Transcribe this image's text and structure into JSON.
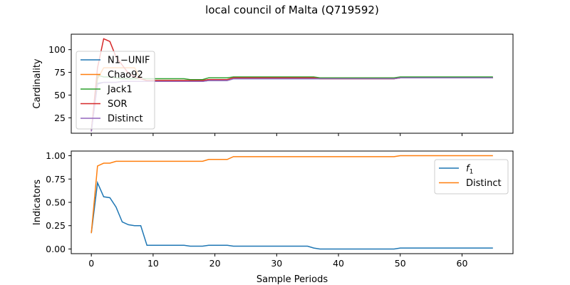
{
  "title": "local council of Malta (Q719592)",
  "chart_data": [
    {
      "type": "line",
      "ylabel": "Cardinality",
      "xlabel": "",
      "xlim": [
        -3.25,
        68.25
      ],
      "ylim": [
        8,
        117
      ],
      "xticks": [
        0,
        10,
        20,
        30,
        40,
        50,
        60
      ],
      "yticks": [
        25,
        50,
        75,
        100
      ],
      "legend_position": "upper-left",
      "series": [
        {
          "name": "N1−UNIF",
          "color": "#1f77b4",
          "x": [
            0,
            1,
            2,
            3,
            4,
            5,
            9,
            15,
            16,
            18,
            19,
            22,
            23,
            36,
            37,
            49,
            50,
            65
          ],
          "y": [
            10,
            63,
            64,
            64,
            64,
            65,
            65,
            65,
            65,
            65,
            66,
            66,
            68,
            68,
            68,
            68,
            69,
            69
          ]
        },
        {
          "name": "Chao92",
          "color": "#ff7f0e",
          "x": [
            0,
            1,
            2,
            3,
            4,
            5,
            6,
            7,
            8,
            9,
            15,
            16,
            18,
            19,
            22,
            23,
            36,
            37,
            49,
            50,
            65
          ],
          "y": [
            12,
            68,
            80,
            80,
            80,
            80,
            80,
            80,
            68,
            66,
            66,
            66,
            66,
            67,
            67,
            69,
            69,
            68,
            68,
            69,
            69
          ]
        },
        {
          "name": "Jack1",
          "color": "#2ca02c",
          "x": [
            0,
            1,
            2,
            3,
            4,
            5,
            9,
            15,
            16,
            18,
            19,
            22,
            23,
            36,
            37,
            49,
            50,
            65
          ],
          "y": [
            11,
            72,
            70,
            70,
            69,
            68,
            68,
            68,
            67,
            67,
            69,
            69,
            70,
            70,
            69,
            69,
            70,
            70
          ]
        },
        {
          "name": "SOR",
          "color": "#d62728",
          "x": [
            0,
            1,
            2,
            3,
            4,
            5,
            6,
            7,
            8,
            9,
            15,
            16,
            18,
            19,
            22,
            23,
            36,
            37,
            49,
            50,
            65
          ],
          "y": [
            10,
            80,
            112,
            109,
            92,
            83,
            74,
            70,
            68,
            66,
            66,
            66,
            66,
            67,
            67,
            69,
            69,
            68,
            68,
            69,
            69
          ]
        },
        {
          "name": "Distinct",
          "color": "#9467bd",
          "x": [
            0,
            1,
            2,
            3,
            4,
            5,
            9,
            15,
            16,
            18,
            19,
            22,
            23,
            36,
            37,
            49,
            50,
            65
          ],
          "y": [
            10,
            62,
            64,
            64,
            64,
            65,
            65,
            65,
            65,
            65,
            66,
            66,
            68,
            68,
            68,
            68,
            69,
            69
          ]
        }
      ]
    },
    {
      "type": "line",
      "ylabel": "Indicators",
      "xlabel": "Sample Periods",
      "xlim": [
        -3.25,
        68.25
      ],
      "ylim": [
        -0.05,
        1.05
      ],
      "xticks": [
        0,
        10,
        20,
        30,
        40,
        50,
        60
      ],
      "yticks": [
        0.0,
        0.25,
        0.5,
        0.75,
        1.0
      ],
      "ytick_labels": [
        "0.00",
        "0.25",
        "0.50",
        "0.75",
        "1.00"
      ],
      "legend_position": "upper-right",
      "series": [
        {
          "name": "f1",
          "color": "#1f77b4",
          "x": [
            0,
            1,
            2,
            3,
            4,
            5,
            6,
            7,
            8,
            9,
            15,
            16,
            18,
            19,
            22,
            23,
            35,
            36,
            37,
            49,
            50,
            65
          ],
          "y": [
            0.17,
            0.71,
            0.56,
            0.55,
            0.45,
            0.29,
            0.26,
            0.25,
            0.25,
            0.04,
            0.04,
            0.03,
            0.03,
            0.04,
            0.04,
            0.03,
            0.03,
            0.01,
            0.0,
            0.0,
            0.01,
            0.01
          ]
        },
        {
          "name": "Distinct",
          "color": "#ff7f0e",
          "x": [
            0,
            1,
            2,
            3,
            4,
            5,
            18,
            19,
            22,
            23,
            49,
            50,
            65
          ],
          "y": [
            0.17,
            0.89,
            0.92,
            0.92,
            0.94,
            0.94,
            0.94,
            0.96,
            0.96,
            0.99,
            0.99,
            1.0,
            1.0
          ]
        }
      ]
    }
  ]
}
